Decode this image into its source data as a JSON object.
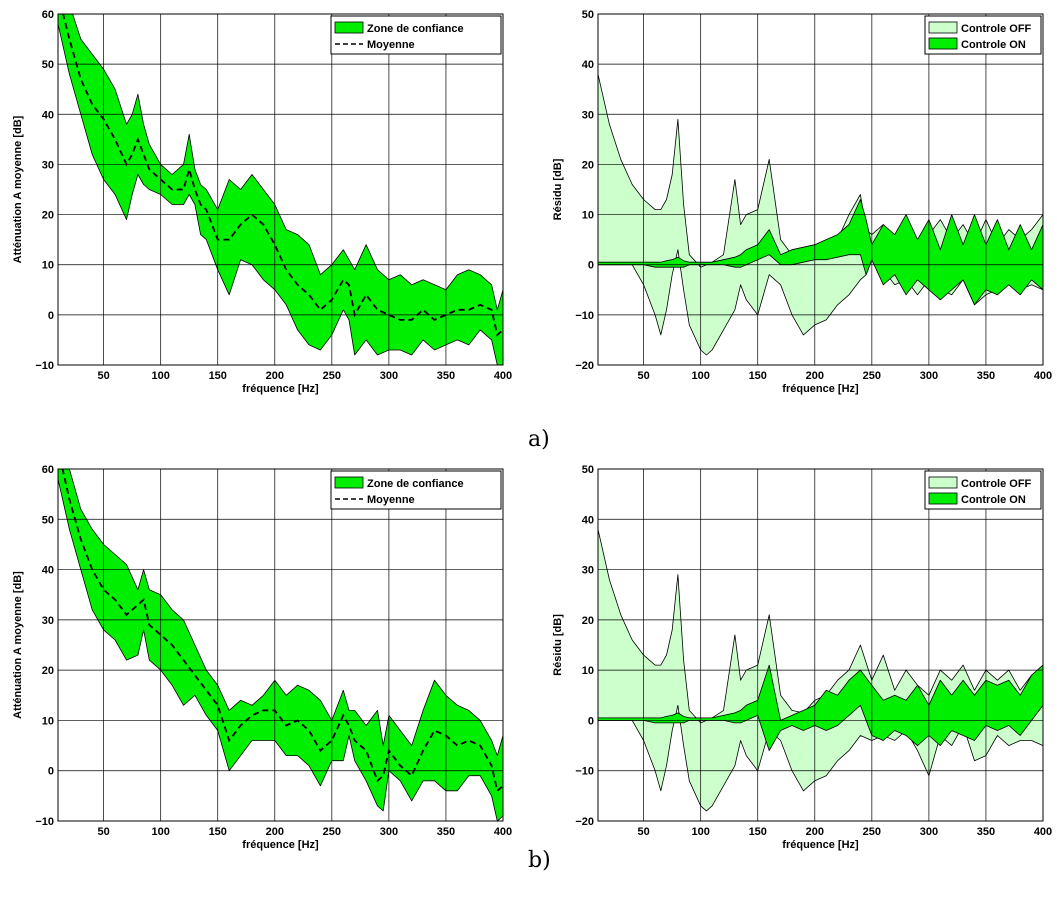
{
  "captions": [
    "a)",
    "b)"
  ],
  "colors": {
    "band": "#00ee00",
    "band_off": "#ccffcc",
    "band_on": "#00ee00",
    "line": "#000000"
  },
  "chart_data": [
    {
      "type": "area",
      "xlabel": "fréquence [Hz]",
      "ylabel": "Atténuation A moyenne [dB]",
      "xlim": [
        10,
        400
      ],
      "ylim": [
        -10,
        60
      ],
      "xticks": [
        50,
        100,
        150,
        200,
        250,
        300,
        350,
        400
      ],
      "yticks": [
        -10,
        0,
        10,
        20,
        30,
        40,
        50,
        60
      ],
      "grid": true,
      "legend_position": "top-right",
      "legend": [
        "Zone de confiance",
        "Moyenne"
      ],
      "x": [
        10,
        20,
        30,
        40,
        50,
        60,
        70,
        75,
        80,
        85,
        90,
        100,
        110,
        120,
        125,
        130,
        135,
        140,
        150,
        160,
        170,
        180,
        190,
        200,
        210,
        220,
        230,
        240,
        250,
        260,
        265,
        270,
        280,
        290,
        300,
        310,
        320,
        330,
        340,
        350,
        360,
        370,
        380,
        390,
        395,
        400
      ],
      "series": [
        {
          "name": "Zone de confiance",
          "role": "band",
          "upper": [
            70,
            62,
            55,
            52,
            49,
            45,
            38,
            40,
            44,
            38,
            34,
            30,
            28,
            30,
            36,
            29,
            26,
            25,
            21,
            27,
            25,
            28,
            25,
            22,
            17,
            16,
            14,
            8,
            10,
            13,
            11,
            9,
            14,
            9,
            7,
            8,
            6,
            7,
            6,
            5,
            8,
            9,
            8,
            6,
            1,
            5
          ],
          "lower": [
            58,
            48,
            40,
            32,
            27,
            24,
            19,
            24,
            28,
            26,
            25,
            24,
            22,
            22,
            24,
            22,
            16,
            15,
            9,
            4,
            11,
            10,
            7,
            5,
            2,
            -3,
            -6,
            -7,
            -4,
            1,
            -1,
            -8,
            -5,
            -8,
            -7,
            -7,
            -8,
            -5,
            -7,
            -6,
            -5,
            -6,
            -3,
            -5,
            -10,
            -12
          ]
        },
        {
          "name": "Moyenne",
          "role": "mean",
          "values": [
            64,
            55,
            47,
            42,
            39,
            35,
            30,
            32,
            35,
            32,
            29,
            27,
            25,
            25,
            29,
            25,
            22,
            21,
            15,
            15,
            18,
            20,
            18,
            14,
            9,
            6,
            4,
            1,
            3,
            7,
            6,
            0,
            4,
            1,
            0,
            -1,
            -1,
            1,
            -1,
            0,
            1,
            1,
            2,
            1,
            -4,
            -3
          ]
        }
      ]
    },
    {
      "type": "area",
      "xlabel": "fréquence [Hz]",
      "ylabel": "Résidu [dB]",
      "xlim": [
        10,
        400
      ],
      "ylim": [
        -20,
        50
      ],
      "xticks": [
        50,
        100,
        150,
        200,
        250,
        300,
        350,
        400
      ],
      "yticks": [
        -20,
        -10,
        0,
        10,
        20,
        30,
        40,
        50
      ],
      "grid": true,
      "legend_position": "top-right",
      "legend": [
        "Controle OFF",
        "Controle ON"
      ],
      "x": [
        10,
        20,
        30,
        40,
        50,
        60,
        65,
        70,
        75,
        80,
        85,
        90,
        100,
        105,
        110,
        120,
        130,
        135,
        140,
        150,
        160,
        170,
        180,
        190,
        200,
        210,
        220,
        230,
        240,
        245,
        250,
        260,
        270,
        280,
        290,
        300,
        310,
        320,
        330,
        340,
        350,
        360,
        370,
        380,
        390,
        400
      ],
      "series": [
        {
          "name": "Controle OFF",
          "role": "band",
          "upper": [
            38,
            28,
            21,
            16,
            13,
            11,
            11,
            13,
            18,
            29,
            12,
            2,
            -0.5,
            0,
            0.5,
            2,
            17,
            8,
            10,
            11,
            21,
            5,
            2,
            1.5,
            4,
            3,
            5,
            10,
            14,
            7,
            6,
            8,
            4,
            7,
            3,
            6,
            9,
            5,
            8,
            4,
            9,
            4,
            7,
            5,
            7,
            10
          ],
          "lower": [
            0,
            0,
            0,
            0,
            -4,
            -10,
            -14,
            -9,
            -2,
            3,
            -5,
            -12,
            -17,
            -18,
            -17,
            -13,
            -9,
            -4,
            -7,
            -10,
            -2,
            -4,
            -10,
            -14,
            -12,
            -11,
            -8,
            -6,
            -3,
            -2,
            1,
            -1,
            -4,
            -3,
            -6,
            -3,
            -5,
            -6,
            -3,
            -8,
            -6,
            -5,
            -3,
            -5,
            -4,
            -5
          ]
        },
        {
          "name": "Controle ON",
          "role": "band",
          "upper": [
            0.5,
            0.5,
            0.5,
            0.5,
            0.5,
            0.5,
            0.5,
            0.8,
            1,
            1.5,
            0.8,
            0.5,
            0.5,
            0.5,
            0.5,
            1,
            1.5,
            2,
            3,
            4,
            7,
            2,
            3,
            3.5,
            4,
            5,
            6,
            8,
            13,
            9,
            4,
            8,
            6,
            10,
            5,
            9,
            3,
            10,
            4,
            10,
            4,
            9,
            3,
            8,
            3,
            8
          ],
          "lower": [
            0,
            0,
            0,
            0,
            0,
            -0.5,
            -0.5,
            -0.5,
            -0.5,
            -0.5,
            -0.5,
            0,
            0,
            0,
            0,
            0,
            -0.5,
            -0.5,
            0,
            1,
            2,
            0,
            0,
            0.5,
            1,
            1,
            1.5,
            2,
            2,
            -2,
            1,
            -4,
            -2,
            -6,
            -3,
            -5,
            -7,
            -5,
            -3,
            -8,
            -5,
            -6,
            -4,
            -6,
            -3,
            -5
          ]
        }
      ]
    },
    {
      "type": "area",
      "xlabel": "fréquence [Hz]",
      "ylabel": "Atténuation A moyenne [dB]",
      "xlim": [
        10,
        400
      ],
      "ylim": [
        -10,
        60
      ],
      "xticks": [
        50,
        100,
        150,
        200,
        250,
        300,
        350,
        400
      ],
      "yticks": [
        -10,
        0,
        10,
        20,
        30,
        40,
        50,
        60
      ],
      "grid": true,
      "legend_position": "top-right",
      "legend": [
        "Zone de confiance",
        "Moyenne"
      ],
      "x": [
        10,
        20,
        30,
        40,
        50,
        60,
        70,
        80,
        85,
        90,
        100,
        110,
        120,
        130,
        140,
        150,
        160,
        170,
        180,
        190,
        200,
        210,
        220,
        230,
        240,
        250,
        260,
        265,
        270,
        280,
        290,
        295,
        300,
        310,
        320,
        330,
        340,
        350,
        360,
        370,
        380,
        390,
        395,
        400
      ],
      "series": [
        {
          "name": "Zone de confiance",
          "role": "band",
          "upper": [
            70,
            60,
            52,
            48,
            45,
            43,
            41,
            36,
            40,
            36,
            35,
            32,
            30,
            25,
            20,
            17,
            12,
            14,
            13,
            15,
            18,
            15,
            17,
            16,
            14,
            10,
            16,
            12,
            12,
            9,
            12,
            5,
            11,
            8,
            5,
            12,
            18,
            15,
            13,
            12,
            10,
            6,
            3,
            7
          ],
          "lower": [
            58,
            48,
            40,
            32,
            28,
            26,
            22,
            23,
            28,
            22,
            20,
            17,
            13,
            15,
            11,
            8,
            0,
            3,
            6,
            6,
            6,
            3,
            3,
            1,
            -3,
            2,
            2,
            7,
            2,
            -2,
            -7,
            -8,
            0,
            -2,
            -6,
            -2,
            -2,
            -4,
            -4,
            -1,
            -1,
            -5,
            -10,
            -9
          ]
        },
        {
          "name": "Moyenne",
          "role": "mean",
          "values": [
            64,
            54,
            46,
            40,
            36,
            34,
            31,
            33,
            34,
            29,
            27,
            25,
            22,
            19,
            16,
            13,
            6,
            9,
            11,
            12,
            12,
            9,
            10,
            8,
            4,
            6,
            11,
            9,
            6,
            4,
            -2,
            -1,
            4,
            1,
            -1,
            4,
            8,
            7,
            5,
            6,
            5,
            1,
            -4,
            -3
          ]
        }
      ]
    },
    {
      "type": "area",
      "xlabel": "fréquence [Hz]",
      "ylabel": "Résidu [dB]",
      "xlim": [
        10,
        400
      ],
      "ylim": [
        -20,
        50
      ],
      "xticks": [
        50,
        100,
        150,
        200,
        250,
        300,
        350,
        400
      ],
      "yticks": [
        -20,
        -10,
        0,
        10,
        20,
        30,
        40,
        50
      ],
      "grid": true,
      "legend_position": "top-right",
      "legend": [
        "Controle OFF",
        "Controle ON"
      ],
      "x": [
        10,
        20,
        30,
        40,
        50,
        60,
        65,
        70,
        75,
        80,
        85,
        90,
        100,
        105,
        110,
        120,
        130,
        135,
        140,
        150,
        160,
        170,
        180,
        190,
        200,
        210,
        220,
        230,
        240,
        250,
        260,
        270,
        280,
        290,
        300,
        310,
        320,
        330,
        340,
        350,
        360,
        370,
        380,
        390,
        400
      ],
      "series": [
        {
          "name": "Controle OFF",
          "role": "band",
          "upper": [
            38,
            28,
            21,
            16,
            13,
            11,
            11,
            13,
            18,
            29,
            12,
            2,
            -0.5,
            0,
            0.5,
            2,
            17,
            8,
            10,
            11,
            21,
            5,
            2,
            1.5,
            4,
            5,
            8,
            10,
            15,
            8,
            13,
            6,
            10,
            7,
            5,
            10,
            8,
            11,
            6,
            10,
            8,
            10,
            6,
            9,
            10
          ],
          "lower": [
            0,
            0,
            0,
            0,
            -4,
            -10,
            -14,
            -9,
            -2,
            3,
            -5,
            -12,
            -17,
            -18,
            -17,
            -13,
            -9,
            -4,
            -7,
            -10,
            -2,
            -4,
            -10,
            -14,
            -12,
            -11,
            -8,
            -6,
            -3,
            -4,
            -3,
            -4,
            -2,
            -6,
            -11,
            -3,
            -5,
            -1,
            -8,
            -7,
            -3,
            -5,
            -4,
            -4,
            -5
          ]
        },
        {
          "name": "Controle ON",
          "role": "band",
          "upper": [
            0.5,
            0.5,
            0.5,
            0.5,
            0.5,
            0.5,
            0.5,
            0.8,
            1,
            1.5,
            0.8,
            0.5,
            0.5,
            0.5,
            0.5,
            1,
            1.5,
            2,
            3,
            4,
            11,
            0,
            1,
            2,
            3,
            6,
            5,
            8,
            10,
            7,
            4,
            5,
            4,
            7,
            3,
            8,
            5,
            8,
            5,
            8,
            7,
            8,
            5,
            9,
            11
          ],
          "lower": [
            0,
            0,
            0,
            0,
            0,
            -0.5,
            -0.5,
            -0.5,
            -0.5,
            -0.5,
            -0.5,
            0,
            0,
            0,
            0,
            0,
            -0.5,
            -0.5,
            0,
            1,
            -6,
            -2,
            -1,
            -2,
            -1,
            -2,
            -1,
            1,
            3,
            -3,
            -4,
            -2,
            -3,
            -5,
            -3,
            -5,
            -2,
            -3,
            -4,
            -1,
            -2,
            -1,
            -3,
            0,
            3
          ]
        }
      ]
    }
  ]
}
